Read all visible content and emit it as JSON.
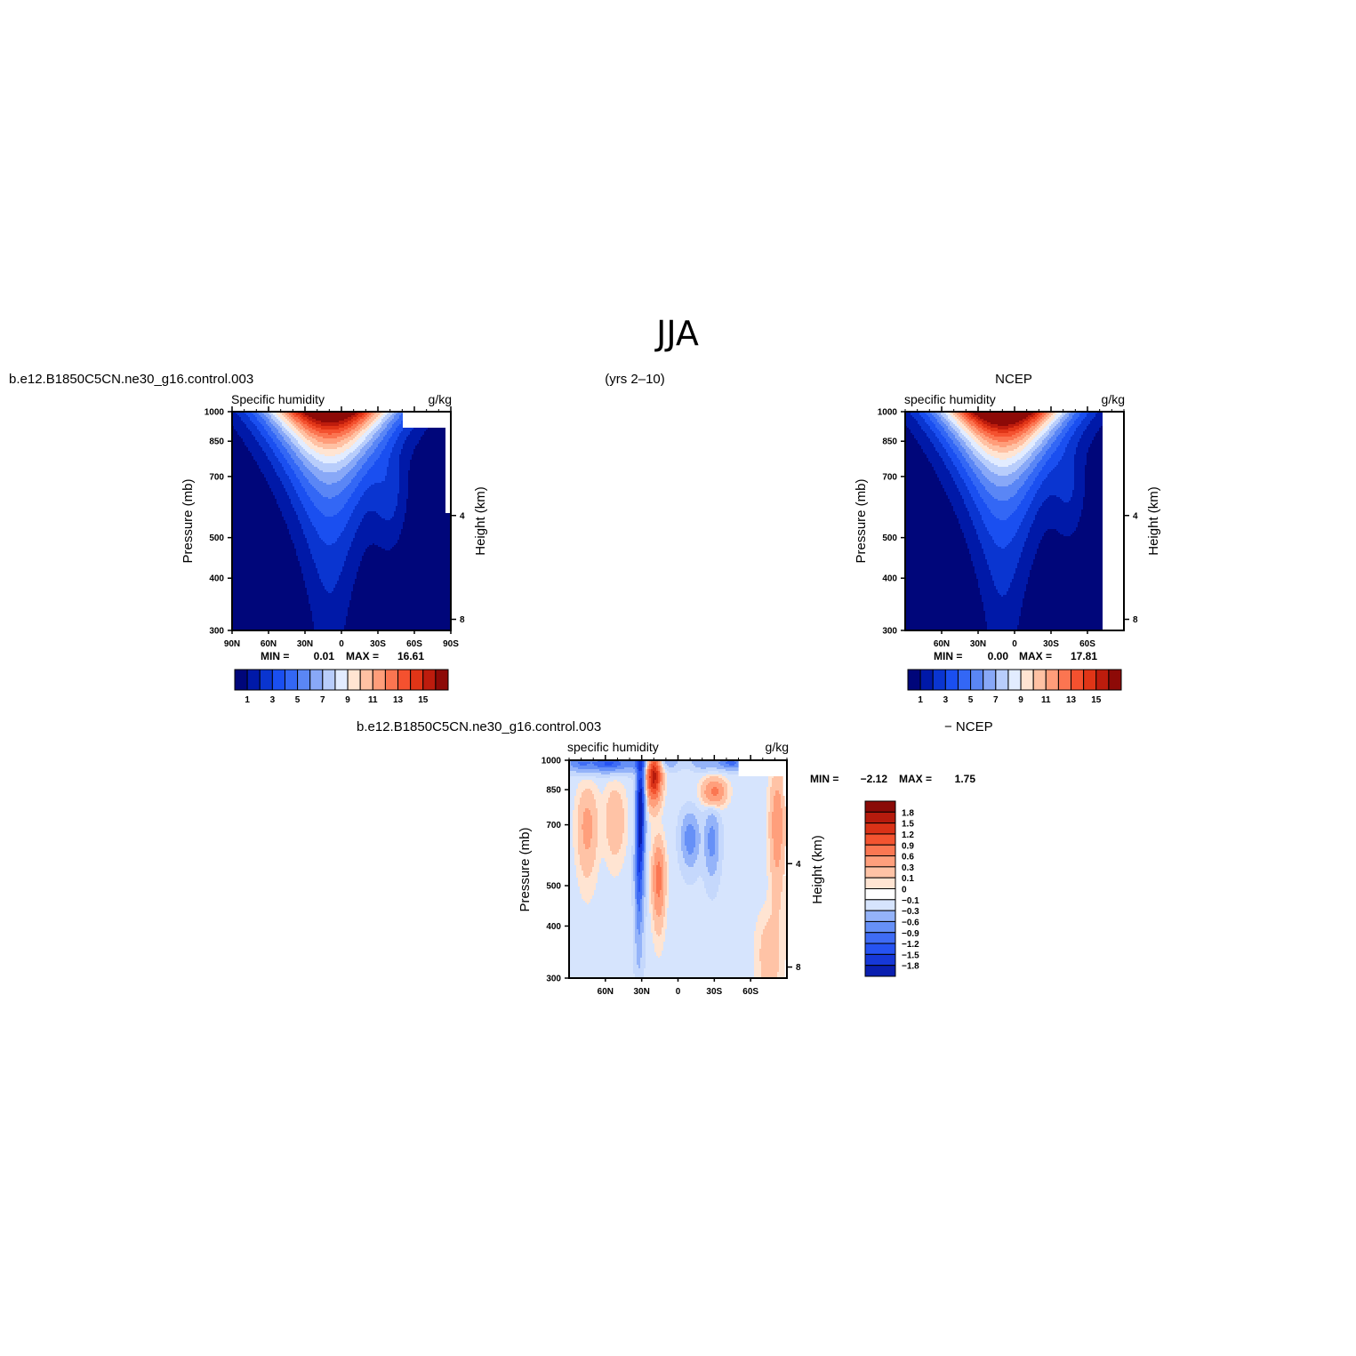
{
  "figure": {
    "title": "JJA",
    "period": "(yrs 2–10)"
  },
  "colors": {
    "pos_palette": [
      "#00067a",
      "#0019a8",
      "#0a35d0",
      "#1a4ff0",
      "#3367f5",
      "#5a86f5",
      "#88a8f7",
      "#b8cdfb",
      "#e2ecff",
      "#ffe4d2",
      "#ffc1a3",
      "#ff9d7a",
      "#fb7551",
      "#f4512f",
      "#e03517",
      "#bd1c0d",
      "#8d0a07"
    ],
    "diff_palette": [
      "#00067a",
      "#0a1fb0",
      "#1638d8",
      "#2653f2",
      "#3f6cf5",
      "#6690f7",
      "#94b3f9",
      "#c5d8fc",
      "#ffffff",
      "#ffe4d2",
      "#ffc3a6",
      "#ff9f7c",
      "#fb7752",
      "#f35430",
      "#d93217",
      "#b51b0d",
      "#8a0a07"
    ]
  },
  "chart_data": [
    {
      "type": "heatmap",
      "panel_title": "b.e12.B1850C5CN.ne30_g16.control.003",
      "left_label": "Specific humidity",
      "right_label": "g/kg",
      "ylabel": "Pressure (mb)",
      "y2label": "Height (km)",
      "xticks": [
        "90N",
        "60N",
        "30N",
        "0",
        "30S",
        "60S",
        "90S"
      ],
      "xtick_values": [
        90,
        60,
        30,
        0,
        -30,
        -60,
        -90
      ],
      "yticks": [
        300,
        400,
        500,
        700,
        850,
        1000
      ],
      "y2ticks": [
        "8",
        "4"
      ],
      "y2tick_values": [
        8,
        4
      ],
      "xlim": [
        90,
        -90
      ],
      "ylim": [
        1000,
        300
      ],
      "stats": {
        "min_label": "MIN =",
        "min": "0.01",
        "max_label": "MAX =",
        "max": "16.61"
      },
      "colorbar": {
        "levels": [
          1,
          2,
          3,
          4,
          5,
          6,
          7,
          8,
          9,
          10,
          11,
          12,
          13,
          14,
          15,
          16
        ],
        "labels": [
          "1",
          "3",
          "5",
          "7",
          "9",
          "11",
          "13",
          "15"
        ],
        "label_values": [
          1,
          3,
          5,
          7,
          9,
          11,
          13,
          15
        ]
      },
      "field": {
        "peak_value": 16.61,
        "peak_lat": 10,
        "surface_width_deg": 45,
        "scale_height_mb": 280,
        "mid_bump": {
          "lat": -40,
          "amp": 1.8,
          "width": 14,
          "p": 620
        },
        "missing_boxes": [
          {
            "lat_min": -90,
            "lat_max": -50,
            "p_min": 915,
            "p_max": 1000
          },
          {
            "lat_min": -90,
            "lat_max": -86,
            "p_min": 575,
            "p_max": 1000
          }
        ]
      }
    },
    {
      "type": "heatmap",
      "panel_title": "NCEP",
      "left_label": "specific humidity",
      "right_label": "g/kg",
      "ylabel": "Pressure (mb)",
      "y2label": "Height (km)",
      "xticks": [
        "60N",
        "30N",
        "0",
        "30S",
        "60S"
      ],
      "xtick_values": [
        60,
        30,
        0,
        -30,
        -60
      ],
      "yticks": [
        300,
        400,
        500,
        700,
        850,
        1000
      ],
      "y2ticks": [
        "8",
        "4"
      ],
      "y2tick_values": [
        8,
        4
      ],
      "xlim": [
        90,
        -90
      ],
      "ylim": [
        1000,
        300
      ],
      "stats": {
        "min_label": "MIN =",
        "min": "0.00",
        "max_label": "MAX =",
        "max": "17.81"
      },
      "colorbar": {
        "levels": [
          1,
          2,
          3,
          4,
          5,
          6,
          7,
          8,
          9,
          10,
          11,
          12,
          13,
          14,
          15,
          16
        ],
        "labels": [
          "1",
          "3",
          "5",
          "7",
          "9",
          "11",
          "13",
          "15"
        ],
        "label_values": [
          1,
          3,
          5,
          7,
          9,
          11,
          13,
          15
        ]
      },
      "field": {
        "peak_value": 17.81,
        "peak_lat": 10,
        "surface_width_deg": 44,
        "scale_height_mb": 275,
        "mid_bump": {
          "lat": -45,
          "amp": 1.5,
          "width": 14,
          "p": 640
        },
        "missing_boxes": [
          {
            "lat_min": -90,
            "lat_max": -72,
            "p_min": 300,
            "p_max": 1000
          }
        ]
      }
    },
    {
      "type": "heatmap",
      "panel_title": "b.e12.B1850C5CN.ne30_g16.control.003",
      "panel_title_right": "− NCEP",
      "left_label": "specific humidity",
      "right_label": "g/kg",
      "ylabel": "Pressure (mb)",
      "y2label": "Height (km)",
      "xticks": [
        "60N",
        "30N",
        "0",
        "30S",
        "60S"
      ],
      "xtick_values": [
        60,
        30,
        0,
        -30,
        -60
      ],
      "yticks": [
        300,
        400,
        500,
        700,
        850,
        1000
      ],
      "y2ticks": [
        "8",
        "4"
      ],
      "y2tick_values": [
        8,
        4
      ],
      "xlim": [
        90,
        -90
      ],
      "ylim": [
        1000,
        300
      ],
      "stats": {
        "min_label": "MIN =",
        "min": "−2.12",
        "max_label": "MAX =",
        "max": "1.75"
      },
      "colorbar": {
        "levels": [
          -1.8,
          -1.5,
          -1.2,
          -0.9,
          -0.6,
          -0.3,
          -0.1,
          0,
          0.1,
          0.3,
          0.6,
          0.9,
          1.2,
          1.5,
          1.8
        ],
        "labels": [
          "1.8",
          "1.5",
          "1.2",
          "0.9",
          "0.6",
          "0.3",
          "0.1",
          "0",
          "−0.1",
          "−0.3",
          "−0.6",
          "−0.9",
          "−1.2",
          "−1.5",
          "−1.8"
        ],
        "label_values": [
          1.8,
          1.5,
          1.2,
          0.9,
          0.6,
          0.3,
          0.1,
          0,
          -0.1,
          -0.3,
          -0.6,
          -0.9,
          -1.2,
          -1.5,
          -1.8
        ]
      },
      "field": {
        "blobs": [
          {
            "lat": 20,
            "p": 920,
            "amp": 1.7,
            "wlat": 6,
            "wp": 120
          },
          {
            "lat": 16,
            "p": 520,
            "amp": 0.8,
            "wlat": 5,
            "wp": 110
          },
          {
            "lat": 31,
            "p": 760,
            "amp": -2.1,
            "wlat": 3.5,
            "wp": 260
          },
          {
            "lat": 33,
            "p": 500,
            "amp": -0.6,
            "wlat": 3,
            "wp": 160
          },
          {
            "lat": -10,
            "p": 650,
            "amp": -0.8,
            "wlat": 7,
            "wp": 90
          },
          {
            "lat": -28,
            "p": 640,
            "amp": -0.7,
            "wlat": 6,
            "wp": 110
          },
          {
            "lat": -30,
            "p": 840,
            "amp": 0.75,
            "wlat": 9,
            "wp": 60
          },
          {
            "lat": 75,
            "p": 690,
            "amp": 0.45,
            "wlat": 8,
            "wp": 160
          },
          {
            "lat": 52,
            "p": 720,
            "amp": 0.35,
            "wlat": 8,
            "wp": 140
          },
          {
            "lat": -82,
            "p": 700,
            "amp": 0.55,
            "wlat": 6,
            "wp": 220
          },
          {
            "lat": -75,
            "p": 340,
            "amp": 0.25,
            "wlat": 10,
            "wp": 90
          },
          {
            "lat": 60,
            "p": 980,
            "amp": -0.9,
            "wlat": 30,
            "wp": 45
          },
          {
            "lat": -45,
            "p": 985,
            "amp": -0.6,
            "wlat": 22,
            "wp": 35
          }
        ],
        "background": -0.05,
        "missing_boxes": [
          {
            "lat_min": -90,
            "lat_max": -50,
            "p_min": 915,
            "p_max": 1000
          },
          {
            "lat_min": -90,
            "lat_max": -86,
            "p_min": 820,
            "p_max": 1000
          }
        ]
      }
    }
  ]
}
